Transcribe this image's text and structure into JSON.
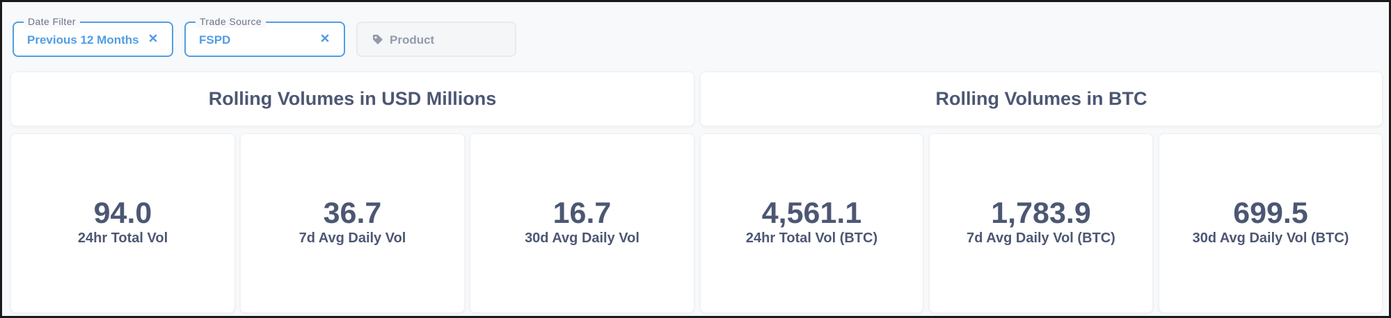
{
  "filters": {
    "date": {
      "label": "Date Filter",
      "value": "Previous 12 Months"
    },
    "source": {
      "label": "Trade Source",
      "value": "FSPD"
    },
    "product": {
      "placeholder": "Product"
    }
  },
  "sections": {
    "usd": {
      "title": "Rolling Volumes in USD Millions"
    },
    "btc": {
      "title": "Rolling Volumes in BTC"
    }
  },
  "metrics": [
    {
      "value": "94.0",
      "label": "24hr Total Vol"
    },
    {
      "value": "36.7",
      "label": "7d Avg Daily Vol"
    },
    {
      "value": "16.7",
      "label": "30d Avg Daily Vol"
    },
    {
      "value": "4,561.1",
      "label": "24hr Total Vol (BTC)"
    },
    {
      "value": "1,783.9",
      "label": "7d Avg Daily Vol (BTC)"
    },
    {
      "value": "699.5",
      "label": "30d Avg Daily Vol (BTC)"
    }
  ],
  "colors": {
    "accent": "#509ee3",
    "text": "#4c5773",
    "muted": "#949aab"
  },
  "icons": {
    "close": "close-icon",
    "tag": "tag-icon"
  }
}
